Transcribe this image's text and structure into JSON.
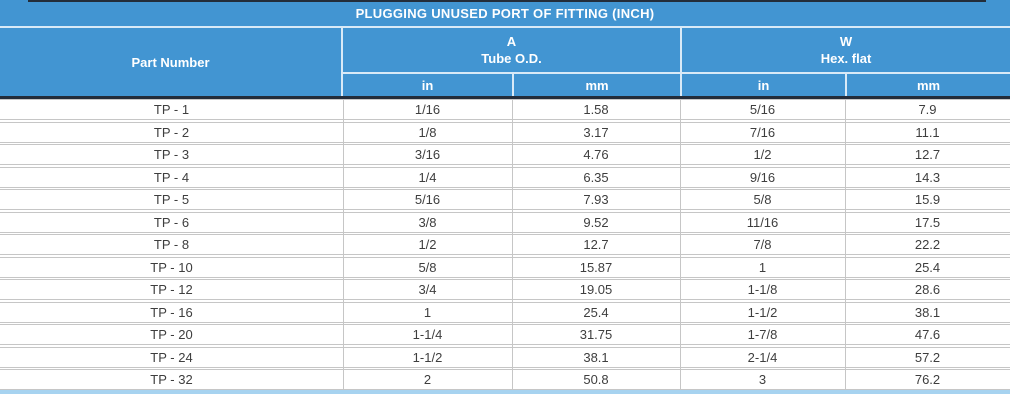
{
  "table": {
    "title": "PLUGGING UNUSED PORT OF FITTING (INCH)",
    "header": {
      "part_number": "Part Number",
      "group_a": {
        "label": "A",
        "sublabel": "Tube O.D."
      },
      "group_w": {
        "label": "W",
        "sublabel": "Hex. flat"
      },
      "unit_in": "in",
      "unit_mm": "mm"
    },
    "rows": [
      {
        "part": "TP - 1",
        "a_in": "1/16",
        "a_mm": "1.58",
        "w_in": "5/16",
        "w_mm": "7.9"
      },
      {
        "part": "TP - 2",
        "a_in": "1/8",
        "a_mm": "3.17",
        "w_in": "7/16",
        "w_mm": "11.1"
      },
      {
        "part": "TP - 3",
        "a_in": "3/16",
        "a_mm": "4.76",
        "w_in": "1/2",
        "w_mm": "12.7"
      },
      {
        "part": "TP - 4",
        "a_in": "1/4",
        "a_mm": "6.35",
        "w_in": "9/16",
        "w_mm": "14.3"
      },
      {
        "part": "TP - 5",
        "a_in": "5/16",
        "a_mm": "7.93",
        "w_in": "5/8",
        "w_mm": "15.9"
      },
      {
        "part": "TP - 6",
        "a_in": "3/8",
        "a_mm": "9.52",
        "w_in": "11/16",
        "w_mm": "17.5"
      },
      {
        "part": "TP - 8",
        "a_in": "1/2",
        "a_mm": "12.7",
        "w_in": "7/8",
        "w_mm": "22.2"
      },
      {
        "part": "TP - 10",
        "a_in": "5/8",
        "a_mm": "15.87",
        "w_in": "1",
        "w_mm": "25.4"
      },
      {
        "part": "TP - 12",
        "a_in": "3/4",
        "a_mm": "19.05",
        "w_in": "1-1/8",
        "w_mm": "28.6"
      },
      {
        "part": "TP - 16",
        "a_in": "1",
        "a_mm": "25.4",
        "w_in": "1-1/2",
        "w_mm": "38.1"
      },
      {
        "part": "TP - 20",
        "a_in": "1-1/4",
        "a_mm": "31.75",
        "w_in": "1-7/8",
        "w_mm": "47.6"
      },
      {
        "part": "TP - 24",
        "a_in": "1-1/2",
        "a_mm": "38.1",
        "w_in": "2-1/4",
        "w_mm": "57.2"
      },
      {
        "part": "TP - 32",
        "a_in": "2",
        "a_mm": "50.8",
        "w_in": "3",
        "w_mm": "76.2"
      }
    ]
  },
  "colors": {
    "header_blue": "#4295d2",
    "header_separator": "#d9eaf7",
    "dark_rule": "#232d3a",
    "row_border": "#c6c6c6",
    "data_text": "#3e3e3e",
    "bottom_rule": "#a7d3f0",
    "header_text": "#ffffff"
  }
}
